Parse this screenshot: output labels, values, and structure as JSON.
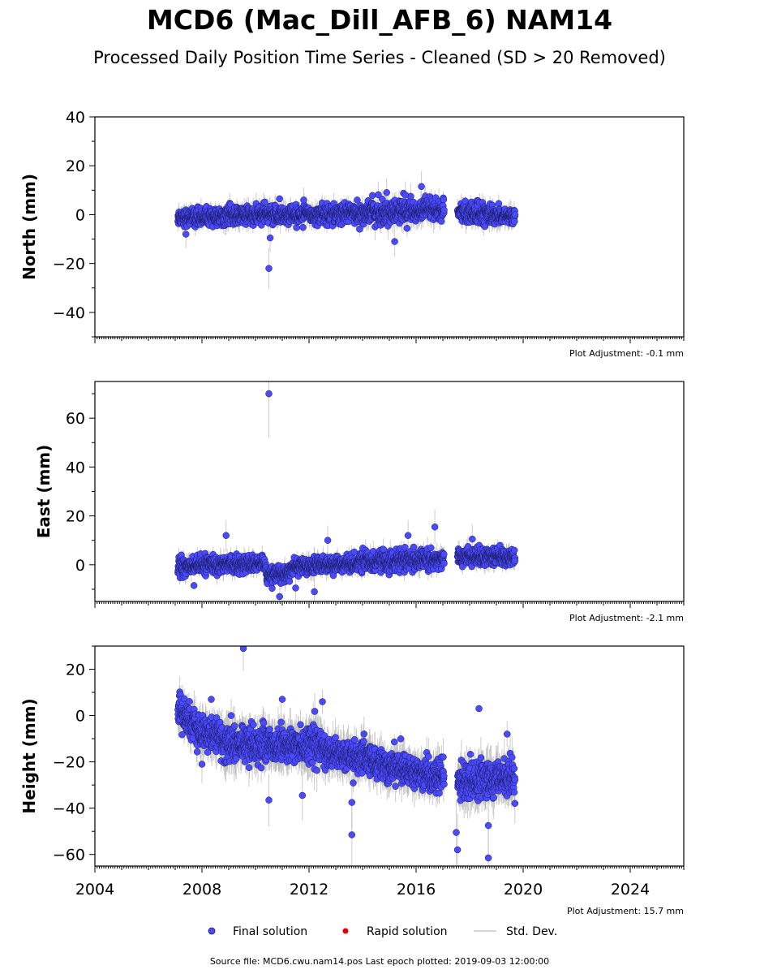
{
  "title": "MCD6 (Mac_Dill_AFB_6) NAM14",
  "subtitle": "Processed Daily Position Time Series - Cleaned (SD > 20 Removed)",
  "colors": {
    "final": "#4a4aff",
    "rapid": "#e00000",
    "stddev": "#b8b8b8"
  },
  "chart_data": [
    {
      "type": "scatter",
      "panel": "north",
      "ylabel": "North (mm)",
      "ylim": [
        -50,
        40
      ],
      "yticks": [
        -40,
        -20,
        0,
        20,
        40
      ],
      "xlim": [
        2004,
        2026
      ],
      "plot_adjustment": "Plot Adjustment: -0.1 mm",
      "series": [
        {
          "name": "Final solution",
          "segments": [
            {
              "x_start": 2007.1,
              "x_end": 2008.9,
              "mean_start": -1,
              "mean_end": -1,
              "spread": 3
            },
            {
              "x_start": 2008.9,
              "x_end": 2014.0,
              "mean_start": -0.5,
              "mean_end": 0.5,
              "spread": 3.5
            },
            {
              "x_start": 2014.0,
              "x_end": 2017.05,
              "mean_start": 0.5,
              "mean_end": 2,
              "spread": 4
            },
            {
              "x_start": 2017.55,
              "x_end": 2019.7,
              "mean_start": 1,
              "mean_end": -1,
              "spread": 3.5
            }
          ],
          "outliers": [
            {
              "x": 2007.4,
              "y": -8
            },
            {
              "x": 2010.5,
              "y": -22
            },
            {
              "x": 2010.55,
              "y": -9.5
            },
            {
              "x": 2010.9,
              "y": 6.5
            },
            {
              "x": 2011.8,
              "y": 6
            },
            {
              "x": 2013.8,
              "y": 6
            },
            {
              "x": 2014.9,
              "y": 9
            },
            {
              "x": 2015.2,
              "y": -11
            },
            {
              "x": 2015.8,
              "y": 7.5
            },
            {
              "x": 2016.2,
              "y": 11.5
            },
            {
              "x": 2015.6,
              "y": 8
            }
          ]
        }
      ]
    },
    {
      "type": "scatter",
      "panel": "east",
      "ylabel": "East (mm)",
      "ylim": [
        -15,
        75
      ],
      "yticks": [
        0,
        20,
        40,
        60
      ],
      "xlim": [
        2004,
        2026
      ],
      "plot_adjustment": "Plot Adjustment: -2.1 mm",
      "series": [
        {
          "name": "Final solution",
          "segments": [
            {
              "x_start": 2007.1,
              "x_end": 2008.9,
              "mean_start": -1,
              "mean_end": 0.5,
              "spread": 3
            },
            {
              "x_start": 2008.9,
              "x_end": 2010.4,
              "mean_start": 0.5,
              "mean_end": 0,
              "spread": 3
            },
            {
              "x_start": 2010.4,
              "x_end": 2011.3,
              "mean_start": -5,
              "mean_end": -3,
              "spread": 3
            },
            {
              "x_start": 2011.3,
              "x_end": 2014.0,
              "mean_start": -1,
              "mean_end": 1,
              "spread": 3
            },
            {
              "x_start": 2014.0,
              "x_end": 2017.05,
              "mean_start": 1,
              "mean_end": 2.5,
              "spread": 3.5
            },
            {
              "x_start": 2017.55,
              "x_end": 2019.7,
              "mean_start": 3.5,
              "mean_end": 3,
              "spread": 3
            }
          ],
          "outliers": [
            {
              "x": 2010.5,
              "y": 70
            },
            {
              "x": 2008.9,
              "y": 12
            },
            {
              "x": 2010.9,
              "y": -13
            },
            {
              "x": 2012.2,
              "y": -11
            },
            {
              "x": 2012.7,
              "y": 10
            },
            {
              "x": 2016.7,
              "y": 15.5
            },
            {
              "x": 2015.7,
              "y": 12
            },
            {
              "x": 2007.7,
              "y": -8.5
            },
            {
              "x": 2011.5,
              "y": -9.5
            },
            {
              "x": 2018.1,
              "y": 10.5
            }
          ]
        }
      ]
    },
    {
      "type": "scatter",
      "panel": "height",
      "ylabel": "Height (mm)",
      "ylim": [
        -65,
        30
      ],
      "yticks": [
        -60,
        -40,
        -20,
        0,
        20
      ],
      "xlim": [
        2004,
        2026
      ],
      "xticks": [
        2004,
        2008,
        2012,
        2016,
        2020,
        2024
      ],
      "plot_adjustment": "Plot Adjustment: 15.7 mm",
      "series": [
        {
          "name": "Final solution",
          "segments": [
            {
              "x_start": 2007.1,
              "x_end": 2007.8,
              "mean_start": 2,
              "mean_end": -5,
              "spread": 6
            },
            {
              "x_start": 2007.8,
              "x_end": 2008.8,
              "mean_start": -6,
              "mean_end": -10,
              "spread": 6
            },
            {
              "x_start": 2008.8,
              "x_end": 2012.5,
              "mean_start": -12,
              "mean_end": -13,
              "spread": 7
            },
            {
              "x_start": 2012.5,
              "x_end": 2014.5,
              "mean_start": -15,
              "mean_end": -20,
              "spread": 6
            },
            {
              "x_start": 2014.5,
              "x_end": 2017.05,
              "mean_start": -20,
              "mean_end": -27,
              "spread": 6
            },
            {
              "x_start": 2017.55,
              "x_end": 2019.7,
              "mean_start": -28,
              "mean_end": -27,
              "spread": 7
            }
          ],
          "outliers": [
            {
              "x": 2009.55,
              "y": 29
            },
            {
              "x": 2008.35,
              "y": 7
            },
            {
              "x": 2008.0,
              "y": -21
            },
            {
              "x": 2010.5,
              "y": -36.5
            },
            {
              "x": 2011.75,
              "y": -34.5
            },
            {
              "x": 2013.6,
              "y": -51.5
            },
            {
              "x": 2013.6,
              "y": -37.5
            },
            {
              "x": 2017.55,
              "y": -58
            },
            {
              "x": 2017.5,
              "y": -50.5
            },
            {
              "x": 2018.35,
              "y": 3
            },
            {
              "x": 2018.7,
              "y": -61.5
            },
            {
              "x": 2018.7,
              "y": -47.5
            },
            {
              "x": 2019.4,
              "y": -8
            },
            {
              "x": 2011.0,
              "y": 7
            },
            {
              "x": 2012.5,
              "y": 6
            }
          ]
        }
      ]
    }
  ],
  "legend": {
    "placement": "bottom",
    "final_label": "Final solution",
    "rapid_label": "Rapid solution",
    "stddev_label": "Std. Dev."
  },
  "source": "Source file: MCD6.cwu.nam14.pos  Last epoch plotted: 2019-09-03 12:00:00"
}
